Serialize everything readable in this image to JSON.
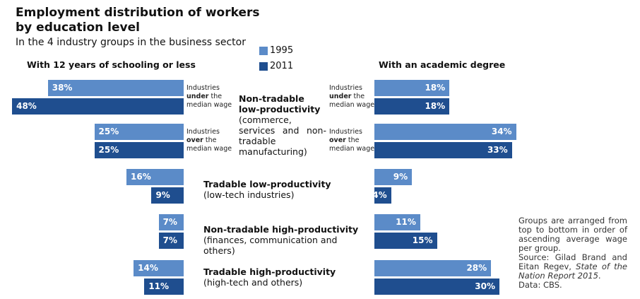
{
  "chart_data": {
    "type": "bar",
    "title": "Employment distribution of workers by education level",
    "subtitle": "In the 4 industry groups in the business sector",
    "series": [
      {
        "name": "1995",
        "color": "#5b8bc8"
      },
      {
        "name": "2011",
        "color": "#1f4e8f"
      }
    ],
    "panels": [
      {
        "title": "With 12 years of schooling or less",
        "values": [
          [
            38,
            25,
            16,
            7,
            14
          ],
          [
            48,
            25,
            9,
            7,
            11
          ]
        ],
        "value_labels": [
          [
            "38%",
            "25%",
            "16%",
            "7%",
            "14%"
          ],
          [
            "48%",
            "25%",
            "9%",
            "7%",
            "11%"
          ]
        ]
      },
      {
        "title": "With an academic degree",
        "values": [
          [
            18,
            34,
            9,
            11,
            28
          ],
          [
            18,
            33,
            4,
            15,
            30
          ]
        ],
        "value_labels": [
          [
            "18%",
            "34%",
            "9%",
            "11%",
            "28%"
          ],
          [
            "18%",
            "33%",
            "4%",
            "15%",
            "30%"
          ]
        ]
      }
    ],
    "groups": [
      {
        "title": "Non-tradable low-productivity",
        "note": "(commerce, services and non-tradable manufacturing)"
      },
      {
        "title": "Tradable low-productivity",
        "note": "(low-tech industries)"
      },
      {
        "title": "Non-tradable high-productivity",
        "note": "(finances, communication and others)"
      },
      {
        "title": "Tradable high-productivity",
        "note": "(high-tech and others)"
      }
    ],
    "wage_notes": [
      {
        "first": "Industries",
        "emph": "under",
        "rest": "the",
        "last": "median wage"
      },
      {
        "first": "Industries",
        "emph": "over",
        "rest": "the",
        "last": "median wage"
      }
    ],
    "footnote": "Groups are arranged from top to bottom in order of ascending average wage per group.",
    "source": {
      "prefix": "Source: Gilad Brand and Eitan Regev,",
      "publication": "State of the Nation Report 2015",
      "suffix": "."
    },
    "data_note": "Data: CBS."
  }
}
